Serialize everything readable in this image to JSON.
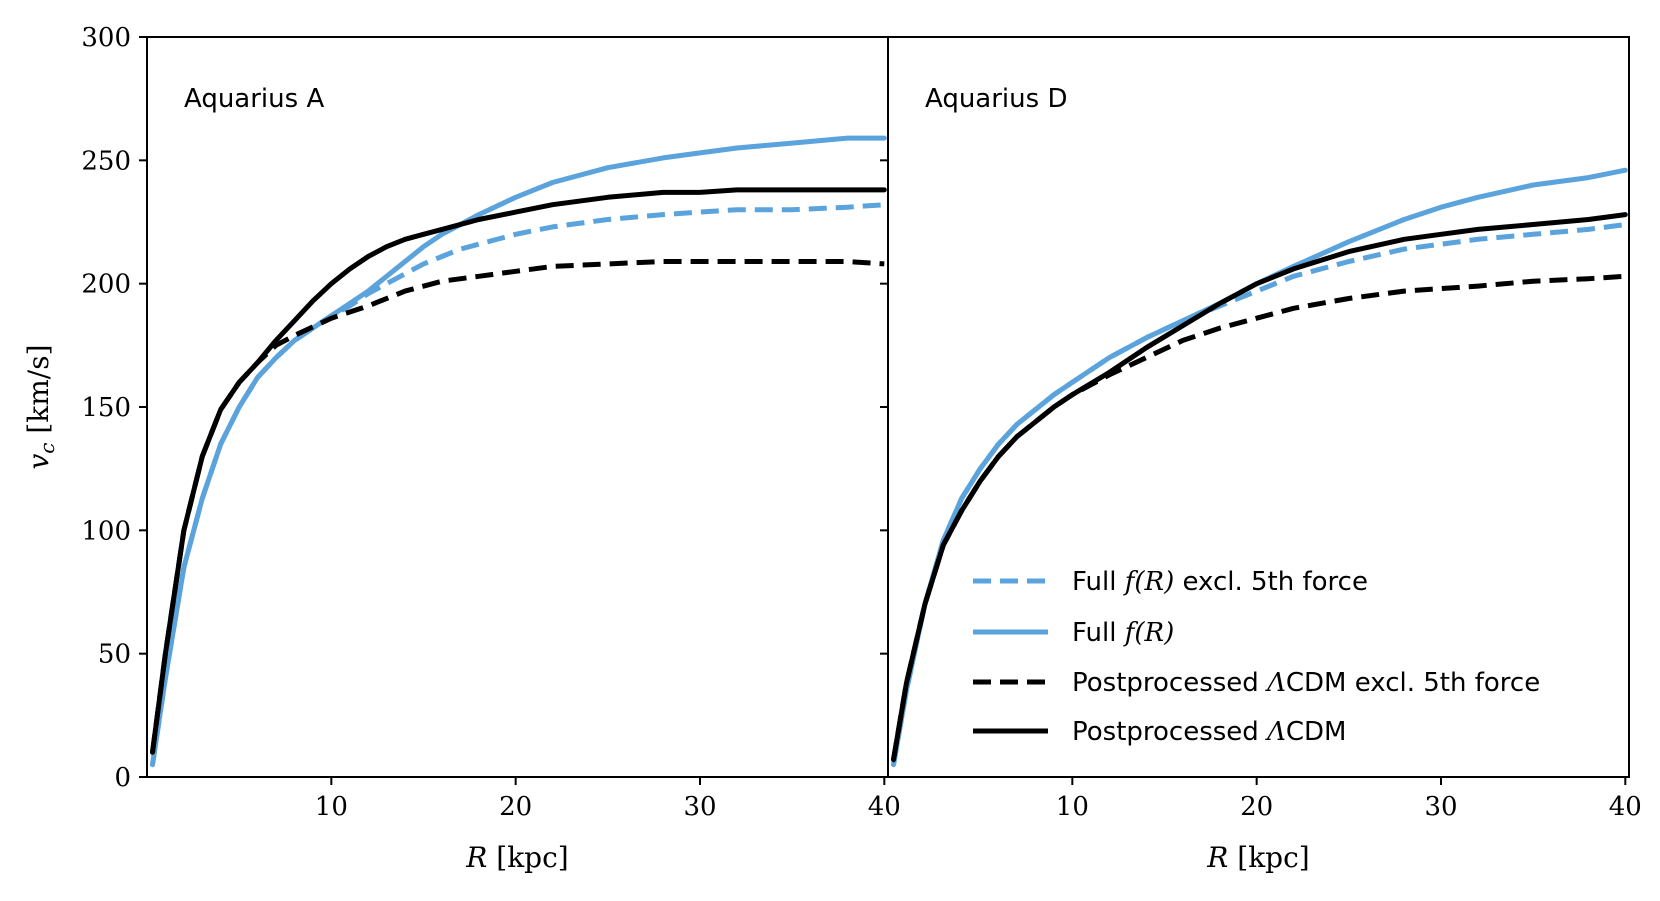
{
  "chart_data": [
    {
      "type": "line",
      "title": "Aquarius A",
      "xlabel": "R [kpc]",
      "ylabel": "v_c [km/s]",
      "xlim": [
        0,
        40.2
      ],
      "ylim": [
        0,
        300
      ],
      "xticks": [
        10,
        20,
        30,
        40
      ],
      "yticks": [
        0,
        50,
        100,
        150,
        200,
        250,
        300
      ],
      "series": [
        {
          "name": "Full f(R) excl. 5th force",
          "color": "#5ba3dc",
          "dash": "dashed",
          "x": [
            0.3,
            1,
            2,
            3,
            4,
            5,
            6,
            7,
            8,
            9,
            10,
            11,
            12,
            13,
            14,
            15,
            16,
            17,
            18,
            20,
            22,
            25,
            28,
            30,
            32,
            35,
            38,
            40
          ],
          "y": [
            5,
            40,
            85,
            113,
            135,
            150,
            162,
            170,
            177,
            182,
            187,
            191,
            196,
            200,
            204,
            208,
            211,
            214,
            216,
            220,
            223,
            226,
            228,
            229,
            230,
            230,
            231,
            232
          ]
        },
        {
          "name": "Full f(R)",
          "color": "#5ba3dc",
          "dash": "solid",
          "x": [
            0.3,
            1,
            2,
            3,
            4,
            5,
            6,
            7,
            8,
            9,
            10,
            11,
            12,
            13,
            14,
            15,
            16,
            17,
            18,
            20,
            22,
            25,
            28,
            30,
            32,
            35,
            38,
            40
          ],
          "y": [
            5,
            40,
            85,
            113,
            135,
            150,
            162,
            170,
            177,
            182,
            187,
            192,
            197,
            203,
            209,
            215,
            220,
            224,
            228,
            235,
            241,
            247,
            251,
            253,
            255,
            257,
            259,
            259
          ]
        },
        {
          "name": "Postprocessed ΛCDM excl. 5th force",
          "color": "#000000",
          "dash": "dashed",
          "x": [
            0.3,
            1,
            2,
            3,
            4,
            5,
            6,
            7,
            8,
            10,
            12,
            14,
            16,
            18,
            20,
            22,
            25,
            28,
            30,
            32,
            35,
            38,
            40
          ],
          "y": [
            10,
            50,
            100,
            130,
            149,
            160,
            168,
            175,
            179,
            186,
            191,
            197,
            201,
            203,
            205,
            207,
            208,
            209,
            209,
            209,
            209,
            209,
            208
          ]
        },
        {
          "name": "Postprocessed ΛCDM",
          "color": "#000000",
          "dash": "solid",
          "x": [
            0.3,
            1,
            2,
            3,
            4,
            5,
            6,
            7,
            8,
            9,
            10,
            11,
            12,
            13,
            14,
            15,
            16,
            18,
            20,
            22,
            25,
            28,
            30,
            32,
            35,
            38,
            40
          ],
          "y": [
            10,
            50,
            100,
            130,
            149,
            160,
            168,
            177,
            185,
            193,
            200,
            206,
            211,
            215,
            218,
            220,
            222,
            226,
            229,
            232,
            235,
            237,
            237,
            238,
            238,
            238,
            238
          ]
        }
      ]
    },
    {
      "type": "line",
      "title": "Aquarius D",
      "xlabel": "R [kpc]",
      "ylabel": "",
      "xlim": [
        0,
        40.2
      ],
      "ylim": [
        0,
        300
      ],
      "xticks": [
        10,
        20,
        30,
        40
      ],
      "yticks": [
        0,
        50,
        100,
        150,
        200,
        250,
        300
      ],
      "series": [
        {
          "name": "Full f(R) excl. 5th force",
          "color": "#5ba3dc",
          "dash": "dashed",
          "x": [
            0.3,
            1,
            2,
            3,
            4,
            5,
            6,
            7,
            8,
            9,
            10,
            12,
            14,
            16,
            18,
            20,
            22,
            25,
            28,
            30,
            32,
            35,
            38,
            40
          ],
          "y": [
            5,
            35,
            70,
            96,
            113,
            125,
            135,
            143,
            149,
            155,
            160,
            170,
            178,
            185,
            191,
            197,
            203,
            209,
            214,
            216,
            218,
            220,
            222,
            224
          ]
        },
        {
          "name": "Full f(R)",
          "color": "#5ba3dc",
          "dash": "solid",
          "x": [
            0.3,
            1,
            2,
            3,
            4,
            5,
            6,
            7,
            8,
            9,
            10,
            12,
            14,
            16,
            18,
            20,
            22,
            25,
            28,
            30,
            32,
            35,
            38,
            40
          ],
          "y": [
            5,
            35,
            70,
            96,
            113,
            125,
            135,
            143,
            149,
            155,
            160,
            170,
            178,
            185,
            192,
            200,
            207,
            217,
            226,
            231,
            235,
            240,
            243,
            246
          ]
        },
        {
          "name": "Postprocessed ΛCDM excl. 5th force",
          "color": "#000000",
          "dash": "dashed",
          "x": [
            0.3,
            1,
            2,
            3,
            4,
            5,
            6,
            7,
            8,
            9,
            10,
            12,
            14,
            16,
            18,
            20,
            22,
            25,
            28,
            30,
            32,
            35,
            38,
            40
          ],
          "y": [
            7,
            38,
            70,
            94,
            108,
            120,
            130,
            138,
            144,
            150,
            155,
            163,
            170,
            177,
            182,
            186,
            190,
            194,
            197,
            198,
            199,
            201,
            202,
            203
          ]
        },
        {
          "name": "Postprocessed ΛCDM",
          "color": "#000000",
          "dash": "solid",
          "x": [
            0.3,
            1,
            2,
            3,
            4,
            5,
            6,
            7,
            8,
            9,
            10,
            12,
            14,
            16,
            18,
            20,
            22,
            25,
            28,
            30,
            32,
            35,
            38,
            40
          ],
          "y": [
            7,
            38,
            70,
            94,
            108,
            120,
            130,
            138,
            144,
            150,
            155,
            164,
            174,
            183,
            192,
            200,
            206,
            213,
            218,
            220,
            222,
            224,
            226,
            228
          ]
        }
      ]
    }
  ],
  "legend": {
    "panel": 1,
    "position": "lower-right",
    "entries": [
      {
        "series": 0,
        "parts": [
          {
            "t": "Full "
          },
          {
            "t": "f(R)",
            "math": true
          },
          {
            "t": " excl. 5th force"
          }
        ]
      },
      {
        "series": 1,
        "parts": [
          {
            "t": "Full "
          },
          {
            "t": "f(R)",
            "math": true
          }
        ]
      },
      {
        "series": 2,
        "parts": [
          {
            "t": "Postprocessed "
          },
          {
            "t": "Λ",
            "math": true
          },
          {
            "t": "CDM excl. 5th force"
          }
        ]
      },
      {
        "series": 3,
        "parts": [
          {
            "t": "Postprocessed "
          },
          {
            "t": "Λ",
            "math": true
          },
          {
            "t": "CDM"
          }
        ]
      }
    ]
  }
}
